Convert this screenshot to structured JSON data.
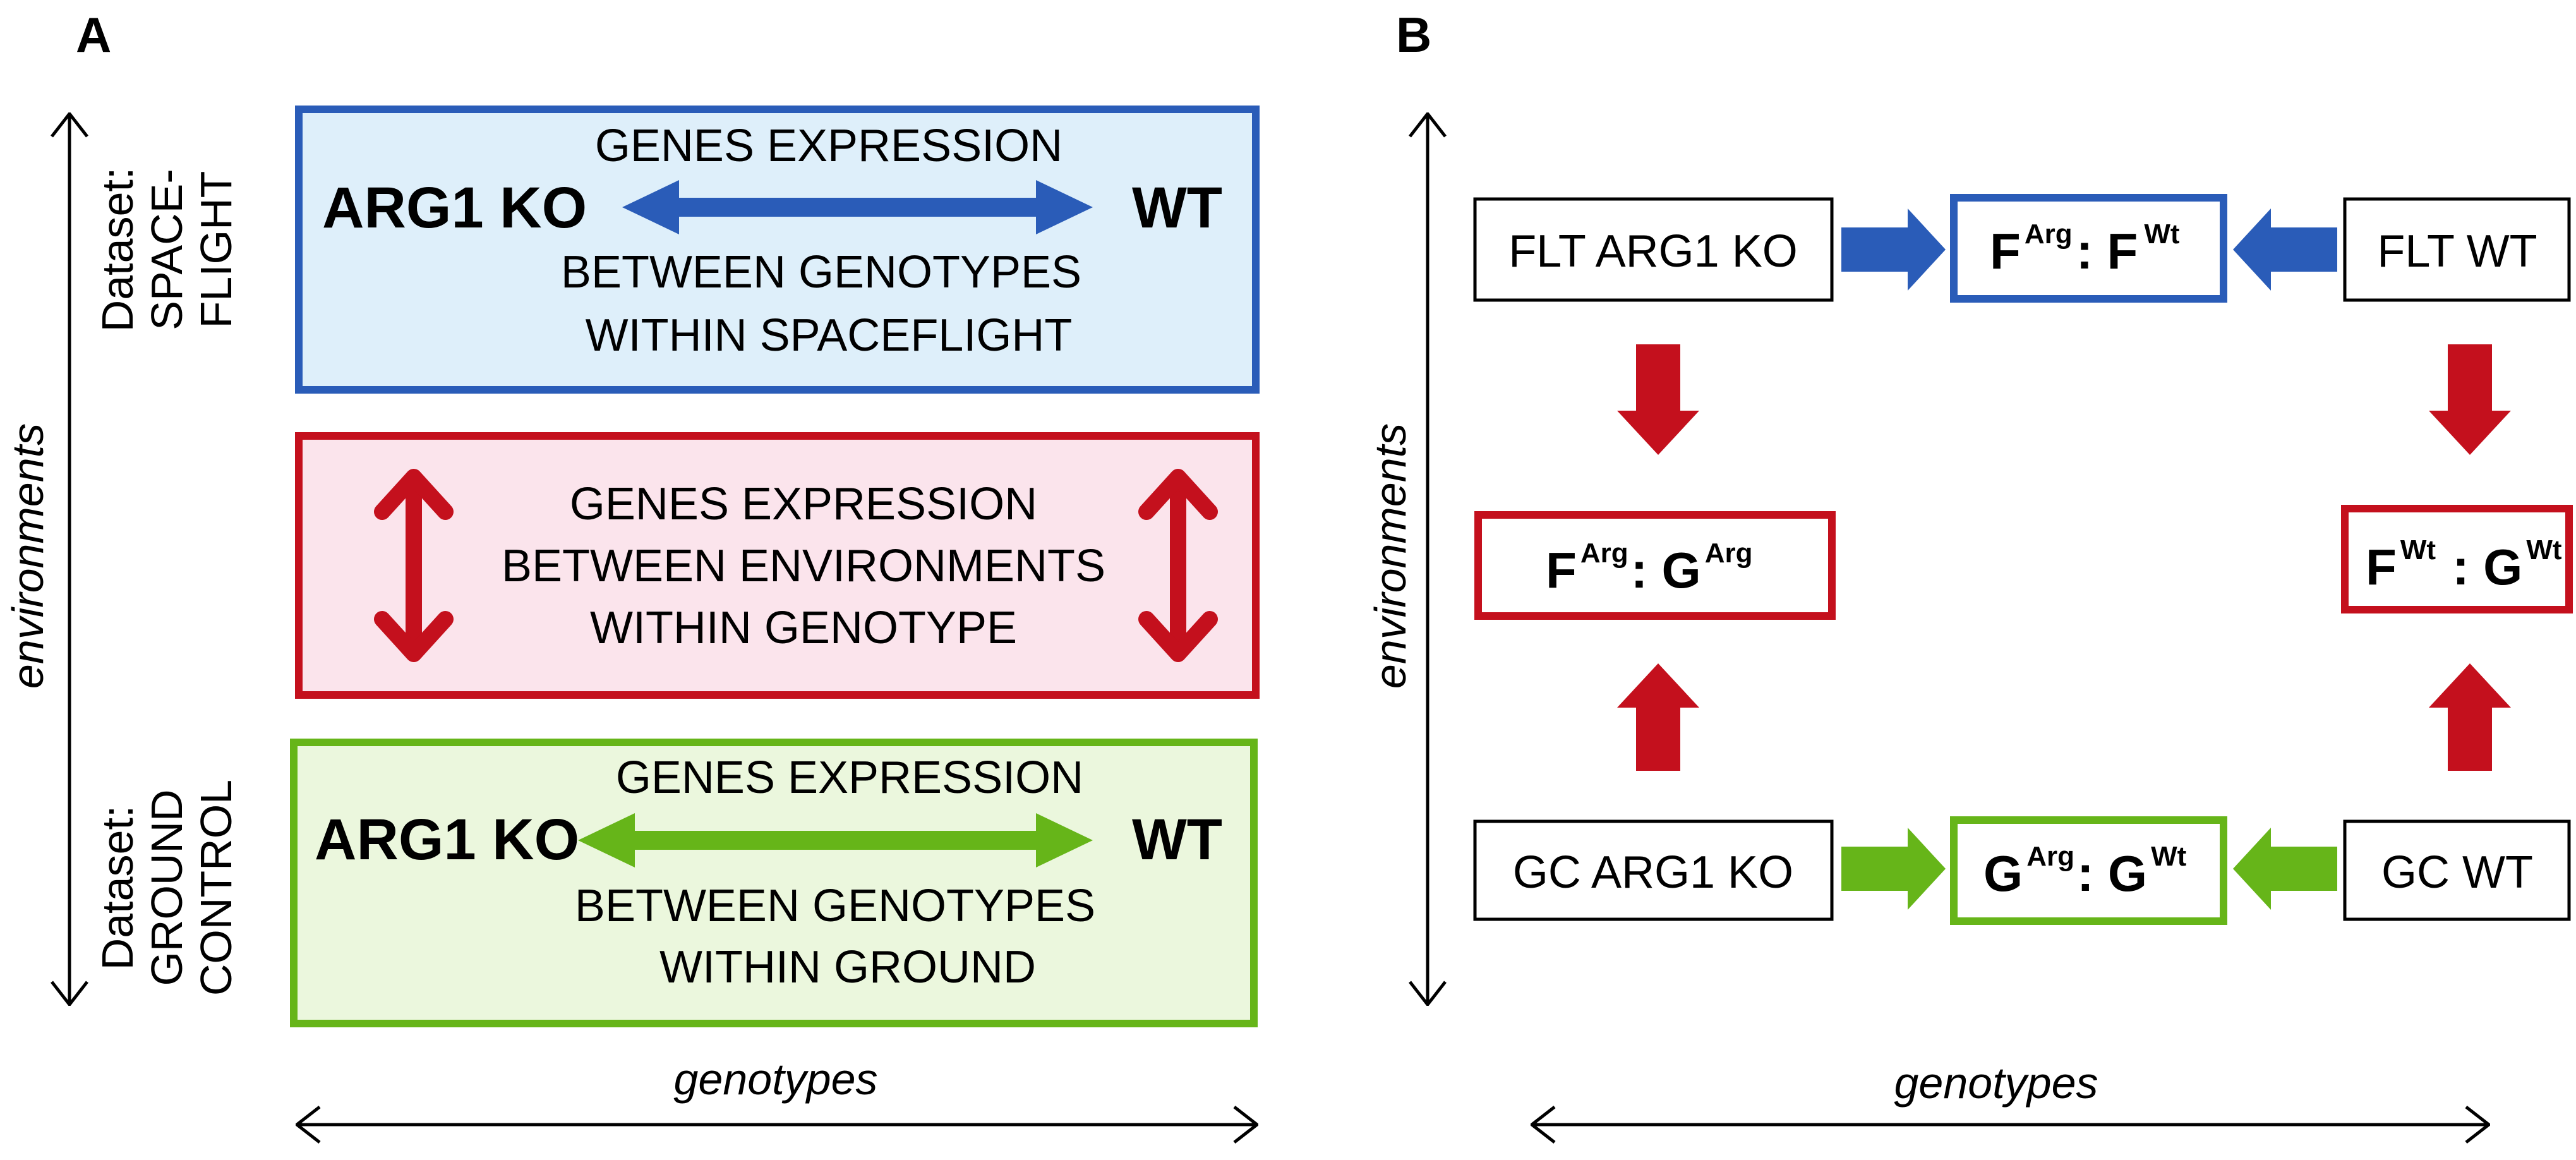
{
  "colors": {
    "blue": "#2a5cb8",
    "blue_fill": "#deeffa",
    "red": "#c4101d",
    "red_fill": "#fbe4ec",
    "green": "#66b519",
    "green_fill": "#ebf7dd",
    "black": "#000000"
  },
  "panel_a": {
    "label": "A",
    "y_axis_label": "environments",
    "x_axis_label": "genotypes",
    "spaceflight_dataset": {
      "line1": "Dataset:",
      "line2": "SPACE-",
      "line3": "FLIGHT"
    },
    "ground_dataset": {
      "line1": "Dataset:",
      "line2": "GROUND",
      "line3": "CONTROL"
    },
    "blue_box": {
      "left_label": "ARG1 KO",
      "right_label": "WT",
      "line1": "GENES EXPRESSION",
      "line2": "BETWEEN GENOTYPES",
      "line3": "WITHIN SPACEFLIGHT"
    },
    "red_box": {
      "line1": "GENES EXPRESSION",
      "line2": "BETWEEN ENVIRONMENTS",
      "line3": "WITHIN GENOTYPE"
    },
    "green_box": {
      "left_label": "ARG1 KO",
      "right_label": "WT",
      "line1": "GENES EXPRESSION",
      "line2": "BETWEEN GENOTYPES",
      "line3": "WITHIN GROUND"
    }
  },
  "panel_b": {
    "label": "B",
    "y_axis_label": "environments",
    "x_axis_label": "genotypes",
    "nodes": {
      "flt_arg1_ko": "FLT ARG1 KO",
      "flt_wt": "FLT WT",
      "gc_arg1_ko": "GC ARG1 KO",
      "gc_wt": "GC WT"
    },
    "formula_top": {
      "base1": "F",
      "sup1": "Arg",
      "sep": ": ",
      "base2": "F",
      "sup2": "Wt"
    },
    "formula_left": {
      "base1": "F",
      "sup1": "Arg",
      "sep": ": ",
      "base2": "G",
      "sup2": "Arg"
    },
    "formula_right": {
      "base1": "F",
      "sup1": "Wt",
      "sep": " : ",
      "base2": "G",
      "sup2": "Wt"
    },
    "formula_bottom": {
      "base1": "G",
      "sup1": "Arg",
      "sep": ": ",
      "base2": "G",
      "sup2": "Wt"
    }
  }
}
